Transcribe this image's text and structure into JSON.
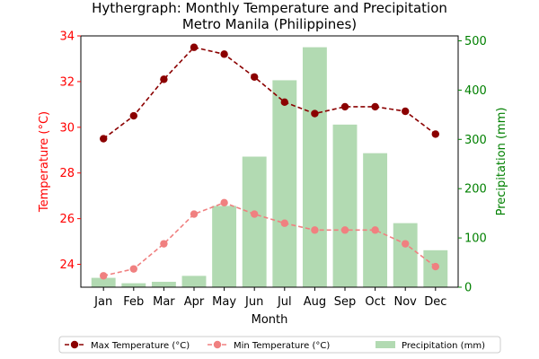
{
  "chart_data": {
    "type": "bar+line",
    "title": "Hythergraph: Monthly Temperature and Precipitation",
    "subtitle": "Metro Manila (Philippines)",
    "xlabel": "Month",
    "ylabel_left": "Temperature (°C)",
    "ylabel_right": "Precipitation (mm)",
    "categories": [
      "Jan",
      "Feb",
      "Mar",
      "Apr",
      "May",
      "Jun",
      "Jul",
      "Aug",
      "Sep",
      "Oct",
      "Nov",
      "Dec"
    ],
    "ylim_left": [
      23.0,
      34.0
    ],
    "yticks_left": [
      24,
      26,
      28,
      30,
      32,
      34
    ],
    "ylim_right": [
      0,
      510
    ],
    "yticks_right": [
      0,
      100,
      200,
      300,
      400,
      500
    ],
    "series": [
      {
        "name": "Max Temperature (°C)",
        "kind": "line",
        "axis": "left",
        "color": "#8b0000",
        "values": [
          29.5,
          30.5,
          32.1,
          33.5,
          33.2,
          32.2,
          31.1,
          30.6,
          30.9,
          30.9,
          30.7,
          29.7
        ]
      },
      {
        "name": "Min Temperature (°C)",
        "kind": "line",
        "axis": "left",
        "color": "#f08080",
        "values": [
          23.5,
          23.8,
          24.9,
          26.2,
          26.7,
          26.2,
          25.8,
          25.5,
          25.5,
          25.5,
          24.9,
          23.9
        ]
      },
      {
        "name": "Precipitation (mm)",
        "kind": "bar",
        "axis": "right",
        "color": "#b2dab2",
        "values": [
          19,
          8,
          11,
          23,
          165,
          265,
          420,
          487,
          330,
          272,
          130,
          75
        ]
      }
    ],
    "left_axis_color": "#ff0000",
    "right_axis_color": "#008000",
    "legend_position": "bottom-center",
    "grid": false
  }
}
